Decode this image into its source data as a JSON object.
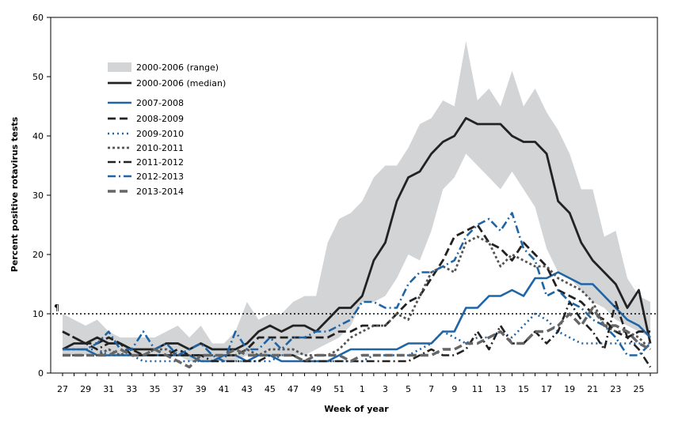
{
  "chart_data": {
    "type": "line",
    "title": "",
    "xlabel": "Week of year",
    "ylabel": "Percent positive rotavirus tests",
    "ylim": [
      0,
      60
    ],
    "yticks": [
      0,
      10,
      20,
      30,
      40,
      50,
      60
    ],
    "x_tick_labels": [
      "27",
      "29",
      "31",
      "33",
      "35",
      "37",
      "39",
      "41",
      "43",
      "45",
      "47",
      "49",
      "51",
      "1",
      "3",
      "5",
      "7",
      "9",
      "11",
      "13",
      "15",
      "17",
      "19",
      "21",
      "23",
      "25"
    ],
    "weeks": [
      "27",
      "28",
      "29",
      "30",
      "31",
      "32",
      "33",
      "34",
      "35",
      "36",
      "37",
      "38",
      "39",
      "40",
      "41",
      "42",
      "43",
      "44",
      "45",
      "46",
      "47",
      "48",
      "49",
      "50",
      "51",
      "52",
      "1",
      "2",
      "3",
      "4",
      "5",
      "6",
      "7",
      "8",
      "9",
      "10",
      "11",
      "12",
      "13",
      "14",
      "15",
      "16",
      "17",
      "18",
      "19",
      "20",
      "21",
      "22",
      "23",
      "24",
      "25",
      "26"
    ],
    "grid": false,
    "legend_placement": "top-left",
    "reference_line": {
      "value": 10,
      "label": "¶",
      "style": "dotted"
    },
    "range_band": {
      "name": "2000-2006 (range)",
      "color": "#d3d4d6",
      "low": [
        3,
        3,
        3,
        3,
        3,
        3,
        3,
        3,
        3,
        3,
        3,
        2,
        2,
        2,
        2,
        2,
        3,
        3,
        3,
        3,
        3,
        3,
        4,
        5,
        6,
        8,
        12,
        12,
        13,
        16,
        20,
        19,
        24,
        31,
        33,
        37,
        35,
        33,
        31,
        34,
        31,
        28,
        21,
        17,
        16,
        14,
        12,
        11,
        9,
        8,
        7,
        6
      ],
      "high": [
        10,
        9,
        8,
        9,
        7,
        6,
        6,
        6,
        6,
        7,
        8,
        6,
        8,
        5,
        5,
        7,
        12,
        9,
        10,
        10,
        12,
        13,
        13,
        22,
        26,
        27,
        29,
        33,
        35,
        35,
        38,
        42,
        43,
        46,
        45,
        56,
        46,
        48,
        45,
        51,
        45,
        48,
        44,
        41,
        37,
        31,
        31,
        23,
        24,
        16,
        13,
        12
      ]
    },
    "series": [
      {
        "name": "2000-2006 (median)",
        "color": "#222222",
        "dash": "",
        "width": 2.8,
        "values": [
          4,
          5,
          5,
          6,
          5,
          5,
          4,
          4,
          4,
          5,
          5,
          4,
          5,
          4,
          4,
          4,
          5,
          7,
          8,
          7,
          8,
          8,
          7,
          9,
          11,
          11,
          13,
          19,
          22,
          29,
          33,
          34,
          37,
          39,
          40,
          43,
          42,
          42,
          42,
          40,
          39,
          39,
          37,
          29,
          27,
          22,
          19,
          17,
          15,
          11,
          14,
          5
        ]
      },
      {
        "name": "2007-2008",
        "color": "#1f65a6",
        "dash": "",
        "width": 2.6,
        "values": [
          4,
          4,
          4,
          3,
          3,
          3,
          3,
          3,
          3,
          3,
          3,
          3,
          2,
          2,
          3,
          3,
          2,
          3,
          3,
          2,
          2,
          2,
          2,
          2,
          3,
          4,
          4,
          4,
          4,
          4,
          5,
          5,
          5,
          7,
          7,
          11,
          11,
          13,
          13,
          14,
          13,
          16,
          16,
          17,
          16,
          15,
          15,
          13,
          11,
          9,
          8,
          6
        ]
      },
      {
        "name": "2008-2009",
        "color": "#222222",
        "dash": "10,5",
        "width": 2.8,
        "values": [
          7,
          6,
          5,
          5,
          6,
          5,
          3,
          3,
          3,
          3,
          4,
          3,
          3,
          3,
          3,
          3,
          4,
          6,
          6,
          6,
          6,
          6,
          6,
          6,
          7,
          7,
          8,
          8,
          8,
          10,
          12,
          13,
          16,
          19,
          23,
          24,
          25,
          22,
          21,
          19,
          22,
          20,
          18,
          14,
          13,
          12,
          10,
          9,
          7,
          6,
          7,
          7
        ]
      },
      {
        "name": "2009-2010",
        "color": "#1f65a6",
        "dash": "2,4",
        "width": 2.6,
        "values": [
          4,
          4,
          4,
          4,
          3,
          3,
          3,
          2,
          2,
          2,
          2,
          2,
          2,
          2,
          2,
          2,
          2,
          2,
          2,
          3,
          3,
          2,
          2,
          2,
          2,
          2,
          2,
          3,
          3,
          3,
          3,
          4,
          5,
          7,
          6,
          5,
          6,
          6,
          7,
          6,
          8,
          10,
          9,
          7,
          6,
          5,
          5,
          5,
          5,
          5,
          5,
          5
        ]
      },
      {
        "name": "2010-2011",
        "color": "#555555",
        "dash": "3,3",
        "width": 2.8,
        "values": [
          3,
          3,
          3,
          3,
          4,
          3,
          4,
          3,
          4,
          4,
          3,
          3,
          3,
          3,
          3,
          3,
          4,
          3,
          4,
          4,
          4,
          3,
          3,
          3,
          4,
          6,
          7,
          8,
          8,
          10,
          9,
          13,
          17,
          18,
          17,
          22,
          23,
          22,
          18,
          20,
          19,
          18,
          18,
          16,
          15,
          14,
          12,
          8,
          7,
          7,
          6,
          4
        ]
      },
      {
        "name": "2011-2012",
        "color": "#222222",
        "dash": "10,4,2,4",
        "width": 2.6,
        "values": [
          7,
          6,
          5,
          4,
          5,
          5,
          4,
          3,
          3,
          3,
          3,
          3,
          3,
          2,
          2,
          2,
          2,
          2,
          3,
          3,
          3,
          2,
          2,
          2,
          2,
          2,
          2,
          2,
          2,
          2,
          2,
          3,
          4,
          3,
          3,
          4,
          7,
          4,
          8,
          5,
          5,
          7,
          5,
          7,
          12,
          9,
          7,
          4,
          12,
          6,
          4,
          1
        ]
      },
      {
        "name": "2012-2013",
        "color": "#1f65a6",
        "dash": "10,4,2,4",
        "width": 2.6,
        "values": [
          4,
          4,
          4,
          5,
          7,
          4,
          4,
          7,
          4,
          5,
          3,
          4,
          5,
          3,
          2,
          7,
          4,
          4,
          6,
          4,
          6,
          6,
          7,
          7,
          8,
          9,
          12,
          12,
          11,
          11,
          15,
          17,
          17,
          18,
          19,
          23,
          25,
          26,
          24,
          27,
          21,
          19,
          13,
          14,
          12,
          11,
          9,
          8,
          6,
          3,
          3,
          5
        ]
      },
      {
        "name": "2013-2014",
        "color": "#666666",
        "dash": "10,5",
        "width": 3.4,
        "values": [
          3,
          3,
          3,
          3,
          3,
          4,
          3,
          3,
          4,
          3,
          2,
          1,
          3,
          3,
          3,
          4,
          3,
          3,
          3,
          3,
          3,
          2,
          3,
          3,
          3,
          2,
          3,
          3,
          3,
          3,
          3,
          3,
          3,
          4,
          4,
          5,
          5,
          6,
          7,
          5,
          5,
          7,
          7,
          8,
          10,
          8,
          11,
          8,
          8,
          7,
          5,
          4
        ]
      }
    ]
  }
}
